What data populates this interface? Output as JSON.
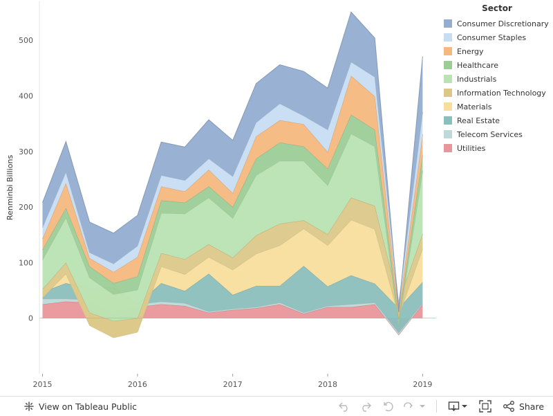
{
  "chart_data": {
    "type": "area",
    "stacked": true,
    "legend": {
      "title": "Sector",
      "position": "right"
    },
    "ylabel": "Renminbi Billions",
    "yticks": [
      0,
      100,
      200,
      300,
      400,
      500
    ],
    "ylim": [
      -100,
      570
    ],
    "xticks": [
      "2015",
      "2016",
      "2017",
      "2018",
      "2019"
    ],
    "xlim": [
      "2014-12-20",
      "2019-02-22"
    ],
    "x": [
      "2015-01-01",
      "2015-04-01",
      "2015-07-01",
      "2015-10-01",
      "2016-01-01",
      "2016-04-01",
      "2016-07-01",
      "2016-10-01",
      "2017-01-01",
      "2017-04-01",
      "2017-07-01",
      "2017-10-01",
      "2018-01-01",
      "2018-04-01",
      "2018-07-01",
      "2018-10-01",
      "2019-01-01"
    ],
    "grid": false,
    "series": [
      {
        "name": "Utilities",
        "color": "#e8969b",
        "values": [
          25,
          30,
          28,
          12,
          20,
          25,
          22,
          10,
          15,
          18,
          25,
          8,
          20,
          20,
          25,
          -30,
          25
        ]
      },
      {
        "name": "Telecom Services",
        "color": "#bed9d8",
        "values": [
          10,
          5,
          5,
          5,
          5,
          5,
          5,
          2,
          2,
          2,
          3,
          2,
          2,
          5,
          3,
          4,
          2
        ]
      },
      {
        "name": "Real Estate",
        "color": "#8bbfbd",
        "values": [
          12,
          28,
          20,
          38,
          0,
          33,
          22,
          68,
          25,
          38,
          30,
          84,
          35,
          52,
          34,
          44,
          38
        ]
      },
      {
        "name": "Materials",
        "color": "#f7de9c",
        "values": [
          -10,
          17,
          -66,
          -90,
          -50,
          30,
          30,
          30,
          45,
          58,
          73,
          67,
          74,
          100,
          98,
          -14,
          60
        ]
      },
      {
        "name": "Information Technology",
        "color": "#dbc889",
        "values": [
          15,
          20,
          23,
          30,
          25,
          24,
          27,
          23,
          22,
          33,
          39,
          15,
          20,
          40,
          42,
          26,
          27
        ]
      },
      {
        "name": "Industrials",
        "color": "#b9e3b3",
        "values": [
          53,
          81,
          63,
          48,
          51,
          72,
          82,
          84,
          71,
          108,
          113,
          107,
          88,
          115,
          107,
          -40,
          113
        ]
      },
      {
        "name": "Healthcare",
        "color": "#9dcd97",
        "values": [
          18,
          17,
          20,
          20,
          24,
          23,
          20,
          20,
          20,
          30,
          33,
          26,
          30,
          34,
          30,
          8,
          28
        ]
      },
      {
        "name": "Energy",
        "color": "#f6b87e",
        "values": [
          20,
          45,
          15,
          20,
          35,
          25,
          20,
          30,
          25,
          40,
          40,
          40,
          30,
          70,
          60,
          14,
          38
        ]
      },
      {
        "name": "Consumer Staples",
        "color": "#c7ddf2",
        "values": [
          20,
          20,
          10,
          15,
          20,
          20,
          20,
          20,
          30,
          25,
          30,
          15,
          40,
          25,
          35,
          14,
          40
        ]
      },
      {
        "name": "Consumer Discretionary",
        "color": "#94add0",
        "values": [
          45,
          55,
          55,
          55,
          55,
          60,
          60,
          70,
          65,
          70,
          70,
          80,
          75,
          90,
          70,
          -15,
          100
        ]
      }
    ]
  },
  "toolbar": {
    "view_label": "View on Tableau Public",
    "share_label": "Share"
  }
}
